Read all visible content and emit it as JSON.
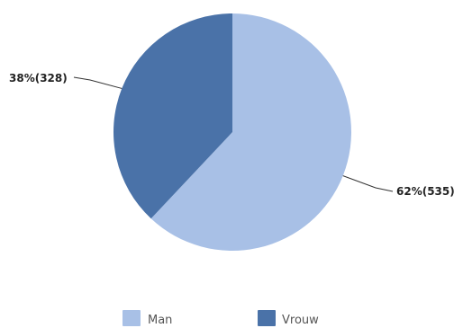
{
  "chart_data": {
    "type": "pie",
    "slices": [
      {
        "name": "Man",
        "value": 535,
        "percent": 62,
        "label": "62%(535)",
        "color": "#a8c0e6"
      },
      {
        "name": "Vrouw",
        "value": 328,
        "percent": 38,
        "label": "38%(328)",
        "color": "#4a72a8"
      }
    ],
    "legend": {
      "position": "bottom",
      "items": [
        "Man",
        "Vrouw"
      ]
    },
    "start_angle": "top",
    "direction": "clockwise"
  }
}
